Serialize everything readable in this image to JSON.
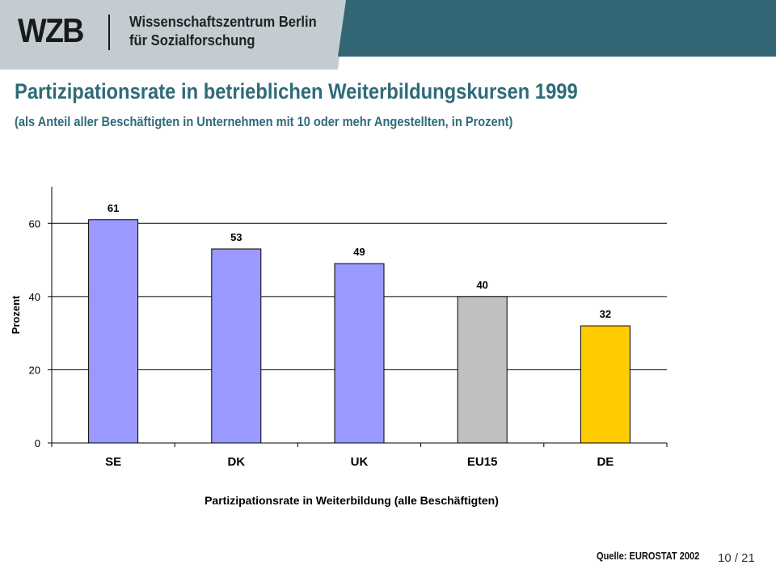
{
  "header": {
    "logo": "WZB",
    "org_line1": "Wissenschaftszentrum Berlin",
    "org_line2": "für Sozialforschung",
    "colors": {
      "light": "#c3ccd1",
      "dark": "#336675"
    }
  },
  "slide": {
    "title": "Partizipationsrate in betrieblichen Weiterbildungskursen 1999",
    "subtitle": "(als Anteil aller Beschäftigten in Unternehmen mit 10 oder mehr Angestellten, in Prozent)",
    "source": "Quelle: EUROSTAT 2002",
    "page": "10 / 21"
  },
  "chart_data": {
    "type": "bar",
    "categories": [
      "SE",
      "DK",
      "UK",
      "EU15",
      "DE"
    ],
    "values": [
      61,
      53,
      49,
      40,
      32
    ],
    "bar_colors": [
      "#9999ff",
      "#9999ff",
      "#9999ff",
      "#c0c0c0",
      "#ffcc00"
    ],
    "xlabel": "Partizipationsrate in Weiterbildung (alle Beschäftigten)",
    "ylabel": "Prozent",
    "ylim": [
      0,
      70
    ],
    "yticks": [
      0,
      20,
      40,
      60
    ],
    "grid": true
  }
}
